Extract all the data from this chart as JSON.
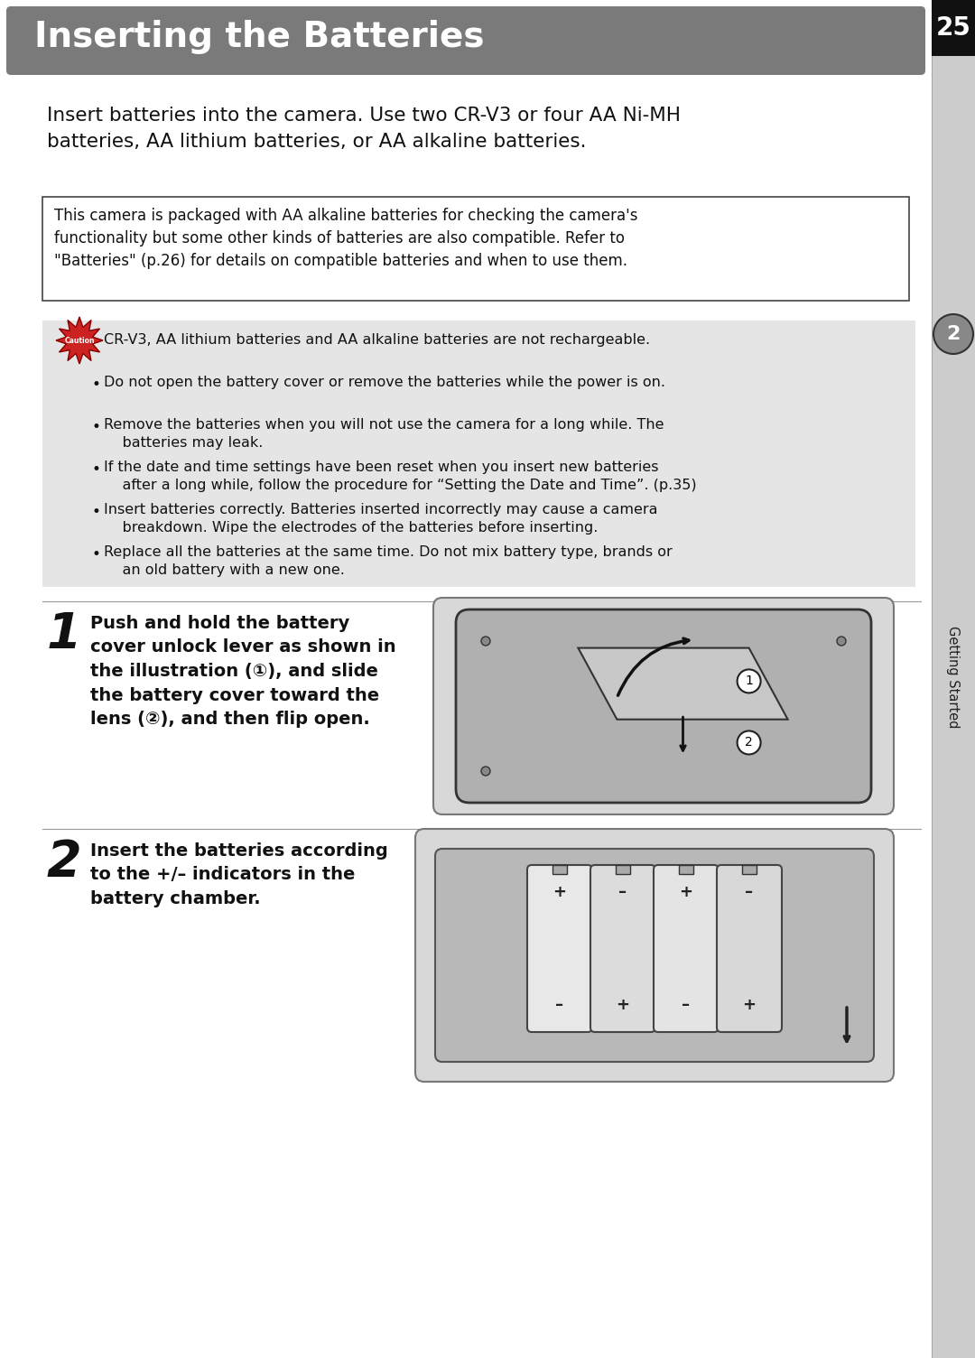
{
  "page_num": "25",
  "header_title": "Inserting the Batteries",
  "header_bg": "#7a7a7a",
  "page_bg": "#ffffff",
  "sidebar_bg": "#cccccc",
  "intro_text": "Insert batteries into the camera. Use two CR-V3 or four AA Ni-MH\nbatteries, AA lithium batteries, or AA alkaline batteries.",
  "note_box_text": "This camera is packaged with AA alkaline batteries for checking the camera's\nfunctionality but some other kinds of batteries are also compatible. Refer to\n\"Batteries\" (p.26) for details on compatible batteries and when to use them.",
  "caution_items": [
    "CR-V3, AA lithium batteries and AA alkaline batteries are not rechargeable.",
    "Do not open the battery cover or remove the batteries while the power is on.",
    "Remove the batteries when you will not use the camera for a long while. The\n    batteries may leak.",
    "If the date and time settings have been reset when you insert new batteries\n    after a long while, follow the procedure for “Setting the Date and Time”. (p.35)",
    "Insert batteries correctly. Batteries inserted incorrectly may cause a camera\n    breakdown. Wipe the electrodes of the batteries before inserting.",
    "Replace all the batteries at the same time. Do not mix battery type, brands or\n    an old battery with a new one."
  ],
  "step1_num": "1",
  "step1_text": "Push and hold the battery\ncover unlock lever as shown in\nthe illustration (①), and slide\nthe battery cover toward the\nlens (②), and then flip open.",
  "step2_num": "2",
  "step2_text": "Insert the batteries according\nto the +/– indicators in the\nbattery chamber.",
  "sidebar_label": "Getting Started",
  "section_num": "2"
}
